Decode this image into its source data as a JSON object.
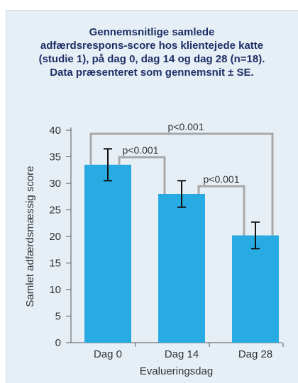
{
  "title_lines": [
    "Gennemsnitlige samlede",
    "adfærdsrespons-score hos klientejede katte",
    "(studie 1), på dag 0, dag 14 og dag 28 (n=18).",
    "Data præsenteret som gennemsnit ± SE."
  ],
  "colors": {
    "panel_bg": "#e7eff6",
    "bar": "#28abe2",
    "title": "#1d2f66",
    "bracket": "#a8a8a8",
    "axis": "#555555",
    "text": "#333333"
  },
  "chart_data": {
    "type": "bar",
    "categories": [
      "Dag 0",
      "Dag 14",
      "Dag 28"
    ],
    "values": [
      33.5,
      28.0,
      20.2
    ],
    "error_se": [
      3.0,
      2.5,
      2.5
    ],
    "xlabel": "Evalueringsdag",
    "ylabel": "Samlet adfærdsmæssig score",
    "ylim": [
      0,
      40
    ],
    "yticks": [
      0,
      5,
      10,
      15,
      20,
      25,
      30,
      35,
      40
    ],
    "grid": false,
    "significance": [
      {
        "from": 0,
        "to": 2,
        "label": "p<0.001"
      },
      {
        "from": 0,
        "to": 1,
        "label": "p<0.001"
      },
      {
        "from": 1,
        "to": 2,
        "label": "p<0.001"
      }
    ]
  }
}
